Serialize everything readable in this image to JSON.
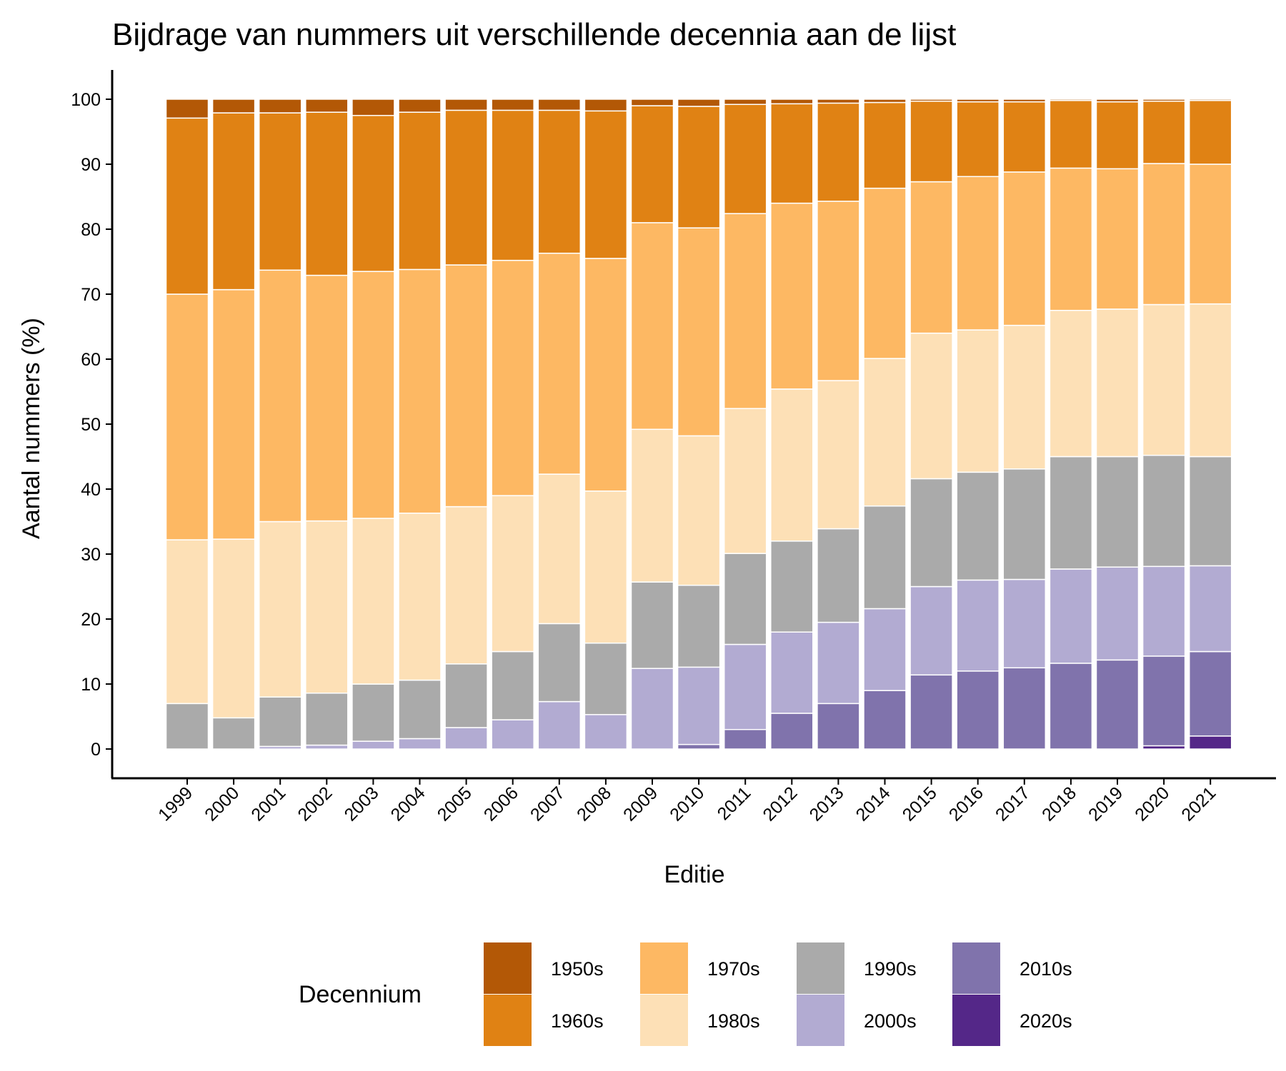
{
  "chart_data": {
    "type": "bar",
    "stacked": true,
    "title": "Bijdrage van nummers uit verschillende decennia aan de lijst",
    "xlabel": "Editie",
    "ylabel": "Aantal nummers (%)",
    "ylim": [
      -4.5,
      104.5
    ],
    "yticks": [
      0,
      10,
      20,
      30,
      40,
      50,
      60,
      70,
      80,
      90,
      100
    ],
    "grid": false,
    "legend": {
      "title": "Decennium",
      "position": "bottom"
    },
    "categories": [
      "1999",
      "2000",
      "2001",
      "2002",
      "2003",
      "2004",
      "2005",
      "2006",
      "2007",
      "2008",
      "2009",
      "2010",
      "2011",
      "2012",
      "2013",
      "2014",
      "2015",
      "2016",
      "2017",
      "2018",
      "2019",
      "2020",
      "2021"
    ],
    "series": [
      {
        "name": "2020s",
        "color": "#542788",
        "values": [
          0,
          0,
          0,
          0,
          0,
          0,
          0,
          0,
          0,
          0,
          0,
          0,
          0,
          0,
          0,
          0,
          0,
          0,
          0,
          0,
          0,
          0.5,
          2
        ]
      },
      {
        "name": "2010s",
        "color": "#8073ac",
        "values": [
          0,
          0,
          0,
          0,
          0,
          0,
          0,
          0,
          0,
          0,
          0,
          0.7,
          3,
          5.5,
          7,
          9,
          11.4,
          12,
          12.5,
          13.2,
          13.7,
          13.8,
          13
        ]
      },
      {
        "name": "2000s",
        "color": "#b2abd2",
        "values": [
          0,
          0,
          0.4,
          0.6,
          1.2,
          1.6,
          3.3,
          4.5,
          7.3,
          5.3,
          12.4,
          11.9,
          13.1,
          12.5,
          12.5,
          12.6,
          13.6,
          14,
          13.6,
          14.5,
          14.3,
          13.8,
          13.2
        ]
      },
      {
        "name": "1990s",
        "color": "#aaaaaa",
        "values": [
          7,
          4.8,
          7.6,
          8,
          8.8,
          9,
          9.8,
          10.5,
          12,
          11,
          13.3,
          12.6,
          14,
          14,
          14.4,
          15.8,
          16.6,
          16.6,
          17,
          17.3,
          17,
          17.1,
          16.8
        ]
      },
      {
        "name": "1980s",
        "color": "#fde0b6",
        "values": [
          25.2,
          27.5,
          27,
          26.5,
          25.5,
          25.7,
          24.2,
          24,
          23,
          23.4,
          23.5,
          23,
          22.3,
          23.4,
          22.8,
          22.7,
          22.4,
          21.9,
          22.1,
          22.5,
          22.7,
          23.2,
          23.5
        ]
      },
      {
        "name": "1970s",
        "color": "#fdb863",
        "values": [
          37.8,
          38.4,
          38.7,
          37.8,
          38,
          37.5,
          37.2,
          36.2,
          34,
          35.8,
          31.8,
          32,
          30,
          28.6,
          27.6,
          26.2,
          23.3,
          23.6,
          23.6,
          21.9,
          21.6,
          21.7,
          21.5
        ]
      },
      {
        "name": "1960s",
        "color": "#e08214",
        "values": [
          27.1,
          27.2,
          24.2,
          25.1,
          24,
          24.2,
          23.8,
          23.1,
          22,
          22.7,
          18,
          18.7,
          16.8,
          15.3,
          15.1,
          13.2,
          12.4,
          11.5,
          10.8,
          10.4,
          10.3,
          9.6,
          9.8
        ]
      },
      {
        "name": "1950s",
        "color": "#b35806",
        "values": [
          2.9,
          2.1,
          2.1,
          2,
          2.5,
          2,
          1.7,
          1.7,
          1.7,
          1.8,
          1,
          1.1,
          0.8,
          0.7,
          0.6,
          0.5,
          0.3,
          0.4,
          0.4,
          0.2,
          0.4,
          0.3,
          0.2
        ]
      }
    ]
  }
}
